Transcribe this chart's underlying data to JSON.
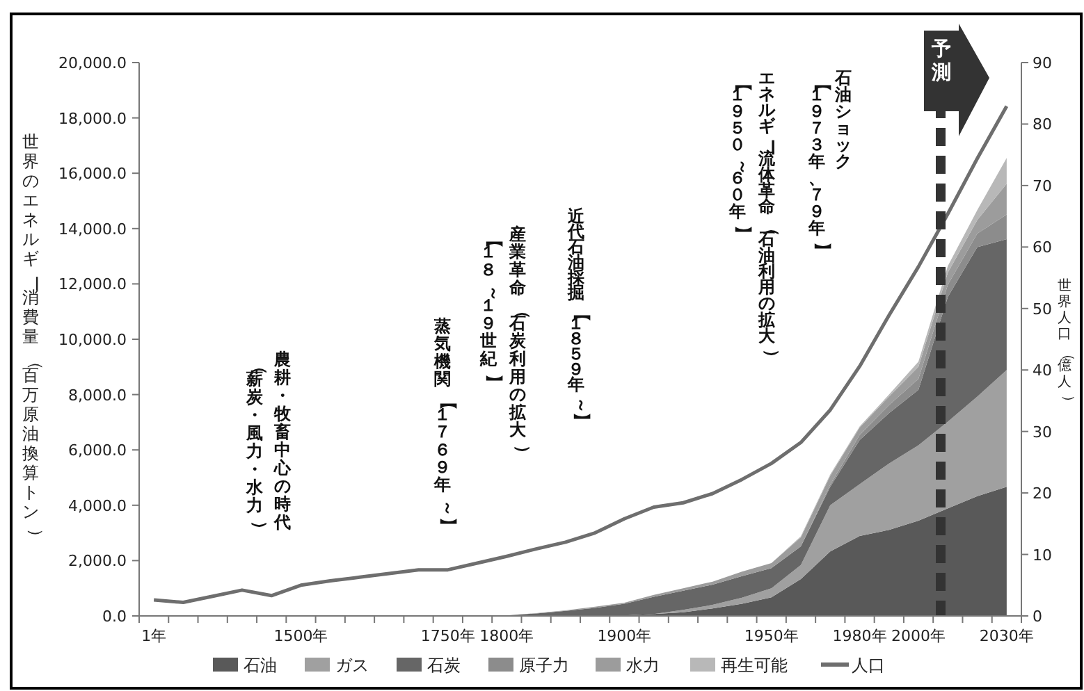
{
  "chart_data": {
    "type": "area",
    "stacked": true,
    "categories": [
      "1年",
      null,
      null,
      null,
      null,
      "1500年",
      null,
      null,
      null,
      null,
      "1750年",
      null,
      "1800年",
      null,
      null,
      null,
      "1900年",
      null,
      null,
      null,
      null,
      "1950年",
      null,
      null,
      "1980年",
      null,
      "2000年",
      null,
      null,
      "2030年"
    ],
    "series": [
      {
        "name": "石油",
        "color": "#595959",
        "values": [
          0,
          0,
          0,
          0,
          0,
          0,
          0,
          0,
          0,
          0,
          0,
          0,
          0,
          0,
          0,
          0,
          20,
          70,
          130,
          270,
          440,
          670,
          1330,
          2330,
          2890,
          3110,
          3440,
          3890,
          4330,
          4670
        ]
      },
      {
        "name": "ガス",
        "color": "#a0a0a0",
        "values": [
          0,
          0,
          0,
          0,
          0,
          0,
          0,
          0,
          0,
          0,
          0,
          0,
          0,
          0,
          0,
          0,
          0,
          0,
          90,
          130,
          220,
          330,
          510,
          1670,
          1870,
          2400,
          2730,
          3130,
          3600,
          4220
        ]
      },
      {
        "name": "石炭",
        "color": "#666666",
        "values": [
          0,
          0,
          0,
          0,
          0,
          0,
          0,
          0,
          0,
          0,
          0,
          0,
          20,
          90,
          180,
          290,
          420,
          620,
          690,
          730,
          780,
          730,
          670,
          670,
          1600,
          1820,
          2000,
          4510,
          5400,
          4730
        ]
      },
      {
        "name": "原子力",
        "color": "#8c8c8c",
        "values": [
          0,
          0,
          0,
          0,
          0,
          0,
          0,
          0,
          0,
          0,
          0,
          0,
          0,
          0,
          0,
          0,
          0,
          0,
          0,
          0,
          0,
          0,
          0,
          70,
          180,
          290,
          400,
          440,
          490,
          890
        ]
      },
      {
        "name": "水力",
        "color": "#9c9c9c",
        "values": [
          0,
          0,
          0,
          0,
          0,
          0,
          0,
          0,
          0,
          0,
          0,
          0,
          0,
          10,
          20,
          40,
          40,
          70,
          90,
          110,
          160,
          180,
          330,
          330,
          270,
          310,
          440,
          440,
          490,
          1110
        ]
      },
      {
        "name": "再生可能",
        "color": "#b8b8b8",
        "values": [
          0,
          0,
          0,
          0,
          0,
          0,
          0,
          0,
          0,
          0,
          0,
          0,
          0,
          0,
          0,
          0,
          0,
          0,
          0,
          0,
          0,
          0,
          40,
          40,
          40,
          70,
          180,
          240,
          360,
          930
        ]
      },
      {
        "name": "人口",
        "type": "line",
        "axis": "y2",
        "color": "#6e6e6e",
        "values": [
          2.6,
          2.2,
          3.2,
          4.2,
          3.3,
          5.0,
          5.7,
          6.3,
          6.9,
          7.5,
          7.5,
          8.6,
          9.7,
          10.9,
          12.0,
          13.5,
          15.8,
          17.7,
          18.4,
          19.9,
          22.2,
          24.8,
          28.2,
          33.5,
          40.6,
          48.9,
          56.8,
          65.4,
          74.4,
          82.9
        ]
      }
    ],
    "ylim": [
      0,
      20000
    ],
    "yticks": [
      {
        "value": 0,
        "label": "0.0"
      },
      {
        "value": 2000,
        "label": "2,000.0"
      },
      {
        "value": 4000,
        "label": "4,000.0"
      },
      {
        "value": 6000,
        "label": "6,000.0"
      },
      {
        "value": 8000,
        "label": "8,000.0"
      },
      {
        "value": 10000,
        "label": "10,000.0"
      },
      {
        "value": 12000,
        "label": "12,000.0"
      },
      {
        "value": 14000,
        "label": "14,000.0"
      },
      {
        "value": 16000,
        "label": "16,000.0"
      },
      {
        "value": 18000,
        "label": "18,000.0"
      },
      {
        "value": 20000,
        "label": "20,000.0"
      }
    ],
    "y2lim": [
      0,
      90
    ],
    "y2ticks": [
      0,
      10,
      20,
      30,
      40,
      50,
      60,
      70,
      80,
      90
    ],
    "ylabel": "世界のエネルギー消費量（百万原油換算トン）",
    "y2label": "世界人口（億人）",
    "annotations": [
      "農耕・牧畜中心の時代",
      "（薪炭・風力・水力）",
      "蒸気機関【１７６９年～】",
      "産業革命（石炭利用の拡大）",
      "【１８～１９世紀】",
      "近代石油採掘【１８５９年～】",
      "エネルギー流体革命（石油利用の拡大）",
      "【１９５０～６０年】",
      "石油ショック",
      "【１９７３年、７９年】",
      "予測"
    ],
    "legend": "bottom"
  }
}
